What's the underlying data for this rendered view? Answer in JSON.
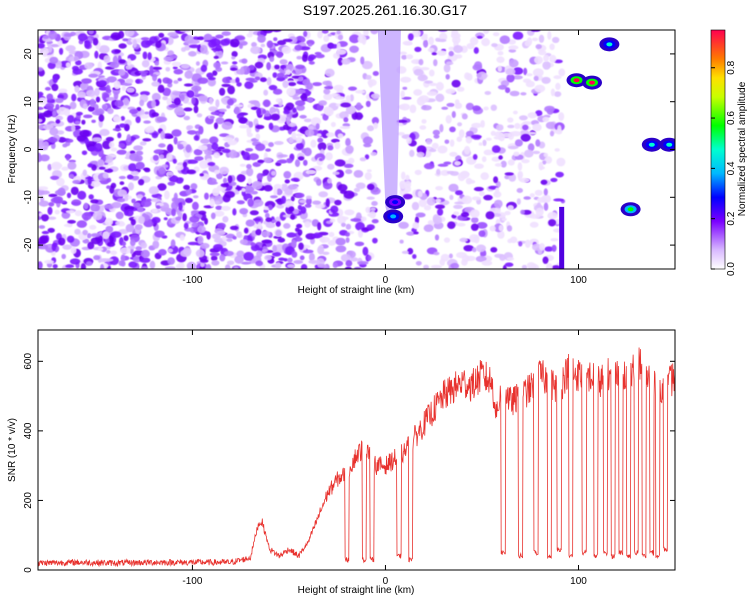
{
  "title": "S197.2025.261.16.30.G17",
  "chart_data": [
    {
      "type": "heatmap",
      "xlabel": "Height of straight line (km)",
      "ylabel": "Frequency (Hz)",
      "xlim": [
        -180,
        150
      ],
      "ylim": [
        -25,
        25
      ],
      "x_ticks": [
        -100,
        0,
        100
      ],
      "y_ticks": [
        -20,
        -10,
        0,
        10,
        20
      ],
      "x_tick_labels": [
        "-100",
        "0",
        "100"
      ],
      "y_tick_labels": [
        "-20",
        "-10",
        "0",
        "10",
        "20"
      ],
      "colorbar": {
        "label": "Normalized spectral amplitude",
        "range": [
          0,
          0.95
        ],
        "ticks": [
          0,
          0.2,
          0.4,
          0.6,
          0.8
        ],
        "tick_labels": [
          "0.0",
          "0.2",
          "0.4",
          "0.6",
          "0.8"
        ]
      },
      "features": [
        {
          "x": 4,
          "y": -14,
          "amplitude": 0.35
        },
        {
          "x": 5,
          "y": -11,
          "amplitude": 0.25
        },
        {
          "x": 99,
          "y": 14.5,
          "amplitude": 0.9
        },
        {
          "x": 107,
          "y": 14,
          "amplitude": 0.85
        },
        {
          "x": 116,
          "y": 22,
          "amplitude": 0.45
        },
        {
          "x": 127,
          "y": -12.5,
          "amplitude": 0.55
        },
        {
          "x": 138,
          "y": 1,
          "amplitude": 0.45
        },
        {
          "x": 147,
          "y": 1,
          "amplitude": 0.45
        }
      ],
      "grid": false,
      "legend": "right"
    },
    {
      "type": "line",
      "xlabel": "Height of straight line (km)",
      "ylabel": "SNR (10 * v/v)",
      "xlim": [
        -180,
        150
      ],
      "ylim": [
        0,
        690
      ],
      "x_ticks": [
        -100,
        0,
        100
      ],
      "y_ticks": [
        0,
        200,
        400,
        600
      ],
      "x_tick_labels": [
        "-100",
        "0",
        "100"
      ],
      "y_tick_labels": [
        "0",
        "200",
        "400",
        "600"
      ],
      "series": [
        {
          "color": "#e8322e",
          "x": [
            -180,
            -160,
            -140,
            -120,
            -100,
            -80,
            -70,
            -66,
            -64,
            -60,
            -55,
            -50,
            -45,
            -40,
            -35,
            -30,
            -25,
            -20,
            -15,
            -10,
            -5,
            0,
            5,
            10,
            15,
            20,
            25,
            30,
            35,
            40,
            45,
            50,
            55,
            58,
            60,
            65,
            70,
            75,
            80,
            85,
            90,
            95,
            100,
            105,
            110,
            115,
            120,
            125,
            130,
            135,
            140,
            145,
            150
          ],
          "y": [
            20,
            22,
            20,
            22,
            22,
            22,
            35,
            130,
            140,
            60,
            40,
            60,
            40,
            80,
            150,
            220,
            260,
            280,
            330,
            360,
            300,
            300,
            320,
            340,
            380,
            420,
            460,
            500,
            520,
            540,
            530,
            560,
            540,
            440,
            540,
            480,
            500,
            520,
            560,
            540,
            520,
            580,
            560,
            560,
            540,
            560,
            580,
            560,
            600,
            560,
            540,
            520,
            560
          ]
        }
      ],
      "dropouts": [
        {
          "x": -20,
          "y": 30
        },
        {
          "x": -11,
          "y": 30
        },
        {
          "x": -7,
          "y": 30
        },
        {
          "x": 7,
          "y": 40
        },
        {
          "x": 13,
          "y": 30
        },
        {
          "x": 61,
          "y": 50
        },
        {
          "x": 70,
          "y": 40
        },
        {
          "x": 78,
          "y": 50
        },
        {
          "x": 85,
          "y": 40
        },
        {
          "x": 90,
          "y": 60
        },
        {
          "x": 96,
          "y": 40
        },
        {
          "x": 103,
          "y": 50
        },
        {
          "x": 109,
          "y": 40
        },
        {
          "x": 114,
          "y": 50
        },
        {
          "x": 118,
          "y": 40
        },
        {
          "x": 122,
          "y": 50
        },
        {
          "x": 126,
          "y": 40
        },
        {
          "x": 130,
          "y": 50
        },
        {
          "x": 134,
          "y": 40
        },
        {
          "x": 138,
          "y": 50
        },
        {
          "x": 141,
          "y": 40
        },
        {
          "x": 145,
          "y": 60
        }
      ],
      "grid": false
    }
  ]
}
